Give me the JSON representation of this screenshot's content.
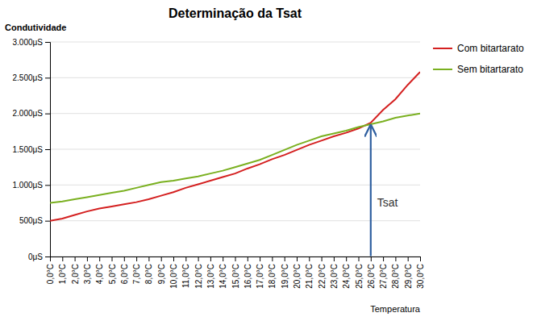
{
  "chart_data": {
    "type": "line",
    "title": "Determinação da Tsat",
    "xlabel": "Temperatura",
    "ylabel": "Condutividade",
    "x": [
      0.0,
      1.0,
      2.0,
      3.0,
      4.0,
      5.0,
      6.0,
      7.0,
      8.0,
      9.0,
      10.0,
      11.0,
      12.0,
      13.0,
      14.0,
      15.0,
      16.0,
      17.0,
      18.0,
      19.0,
      20.0,
      21.0,
      22.0,
      23.0,
      24.0,
      25.0,
      26.0,
      27.0,
      28.0,
      29.0,
      30.0
    ],
    "series": [
      {
        "name": "Com bitartarato",
        "color": "#d42020",
        "values": [
          500,
          530,
          580,
          630,
          670,
          700,
          730,
          760,
          800,
          850,
          900,
          960,
          1010,
          1060,
          1110,
          1160,
          1230,
          1290,
          1360,
          1420,
          1490,
          1560,
          1620,
          1680,
          1730,
          1790,
          1870,
          2050,
          2200,
          2400,
          2580
        ]
      },
      {
        "name": "Sem bitartarato",
        "color": "#7ab020",
        "values": [
          750,
          770,
          800,
          830,
          860,
          890,
          920,
          960,
          1000,
          1040,
          1060,
          1090,
          1120,
          1160,
          1200,
          1250,
          1300,
          1350,
          1420,
          1490,
          1560,
          1620,
          1680,
          1720,
          1760,
          1810,
          1850,
          1890,
          1940,
          1970,
          2000
        ]
      }
    ],
    "xlim": [
      0,
      30
    ],
    "xticks": [
      {
        "value": 0.0,
        "label": "0,0°C"
      },
      {
        "value": 1.0,
        "label": "1,0°C"
      },
      {
        "value": 2.0,
        "label": "2,0°C"
      },
      {
        "value": 3.0,
        "label": "3,0°C"
      },
      {
        "value": 4.0,
        "label": "4,0°C"
      },
      {
        "value": 5.0,
        "label": "5,0°C"
      },
      {
        "value": 6.0,
        "label": "6,0°C"
      },
      {
        "value": 7.0,
        "label": "7,0°C"
      },
      {
        "value": 8.0,
        "label": "8,0°C"
      },
      {
        "value": 9.0,
        "label": "9,0°C"
      },
      {
        "value": 10.0,
        "label": "10,0°C"
      },
      {
        "value": 11.0,
        "label": "11,0°C"
      },
      {
        "value": 12.0,
        "label": "12,0°C"
      },
      {
        "value": 13.0,
        "label": "13,0°C"
      },
      {
        "value": 14.0,
        "label": "14,0°C"
      },
      {
        "value": 15.0,
        "label": "15,0°C"
      },
      {
        "value": 16.0,
        "label": "16,0°C"
      },
      {
        "value": 17.0,
        "label": "17,0°C"
      },
      {
        "value": 18.0,
        "label": "18,0°C"
      },
      {
        "value": 19.0,
        "label": "19,0°C"
      },
      {
        "value": 20.0,
        "label": "20,0°C"
      },
      {
        "value": 21.0,
        "label": "21,0°C"
      },
      {
        "value": 22.0,
        "label": "22,0°C"
      },
      {
        "value": 23.0,
        "label": "23,0°C"
      },
      {
        "value": 24.0,
        "label": "24,0°C"
      },
      {
        "value": 25.0,
        "label": "25,0°C"
      },
      {
        "value": 26.0,
        "label": "26,0°C"
      },
      {
        "value": 27.0,
        "label": "27,0°C"
      },
      {
        "value": 28.0,
        "label": "28,0°C"
      },
      {
        "value": 29.0,
        "label": "29,0°C"
      },
      {
        "value": 30.0,
        "label": "30,0°C"
      }
    ],
    "ylim": [
      0,
      3000
    ],
    "yticks": [
      {
        "value": 0,
        "label": "0μS"
      },
      {
        "value": 500,
        "label": "500μS"
      },
      {
        "value": 1000,
        "label": "1.000μS"
      },
      {
        "value": 1500,
        "label": "1.500μS"
      },
      {
        "value": 2000,
        "label": "2.000μS"
      },
      {
        "value": 2500,
        "label": "2.500μS"
      },
      {
        "value": 3000,
        "label": "3.000μS"
      }
    ],
    "grid": true,
    "legend": "right",
    "annotations": [
      {
        "text": "Tsat",
        "x": 26.0,
        "y": 700,
        "arrow_from": 5,
        "arrow_to": 1830,
        "color": "#3060a0"
      }
    ]
  }
}
